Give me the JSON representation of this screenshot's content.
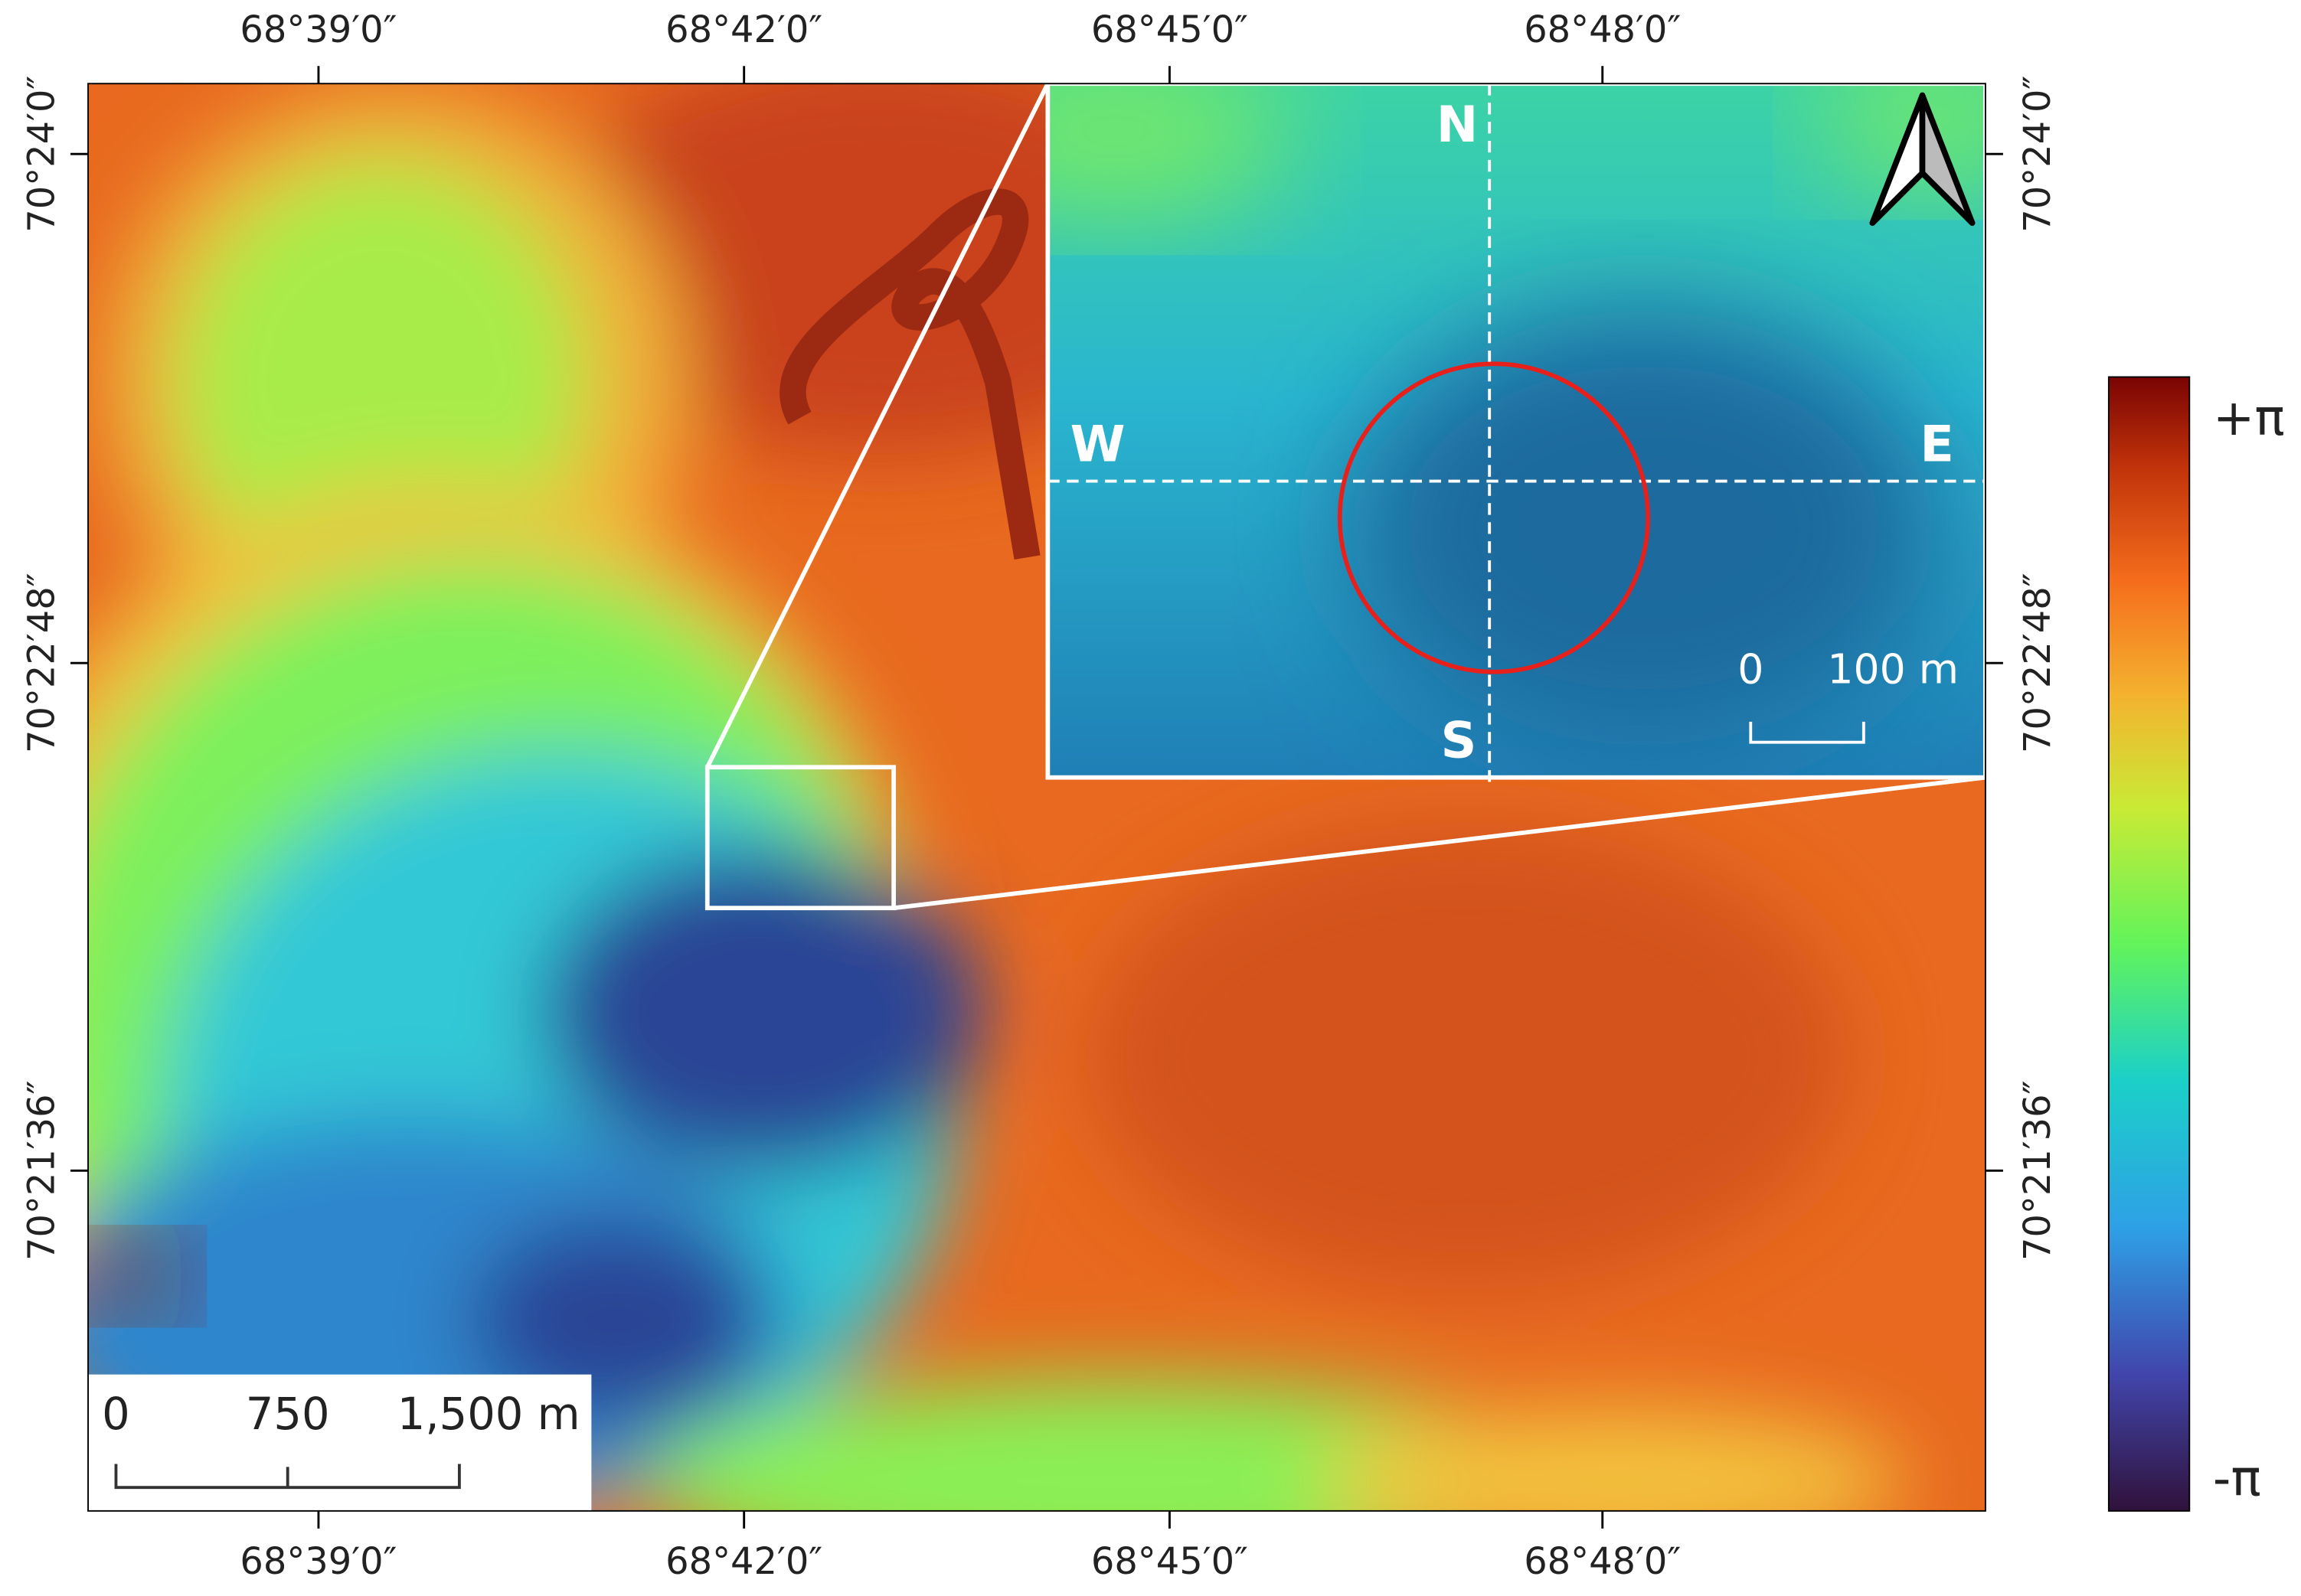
{
  "map": {
    "longitude_labels": [
      "68°39′0″",
      "68°42′0″",
      "68°45′0″",
      "68°48′0″"
    ],
    "latitude_labels": [
      "70°24′0″",
      "70°22′48″",
      "70°21′36″"
    ],
    "inset": {
      "directions": {
        "north": "N",
        "south": "S",
        "west": "W",
        "east": "E"
      },
      "scale_bar": {
        "labels": [
          "0",
          "100 m"
        ]
      }
    },
    "scale_bar": {
      "labels": [
        "0",
        "750",
        "1,500 m"
      ]
    },
    "colorbar": {
      "max_label": "+π",
      "min_label": "-π"
    }
  }
}
